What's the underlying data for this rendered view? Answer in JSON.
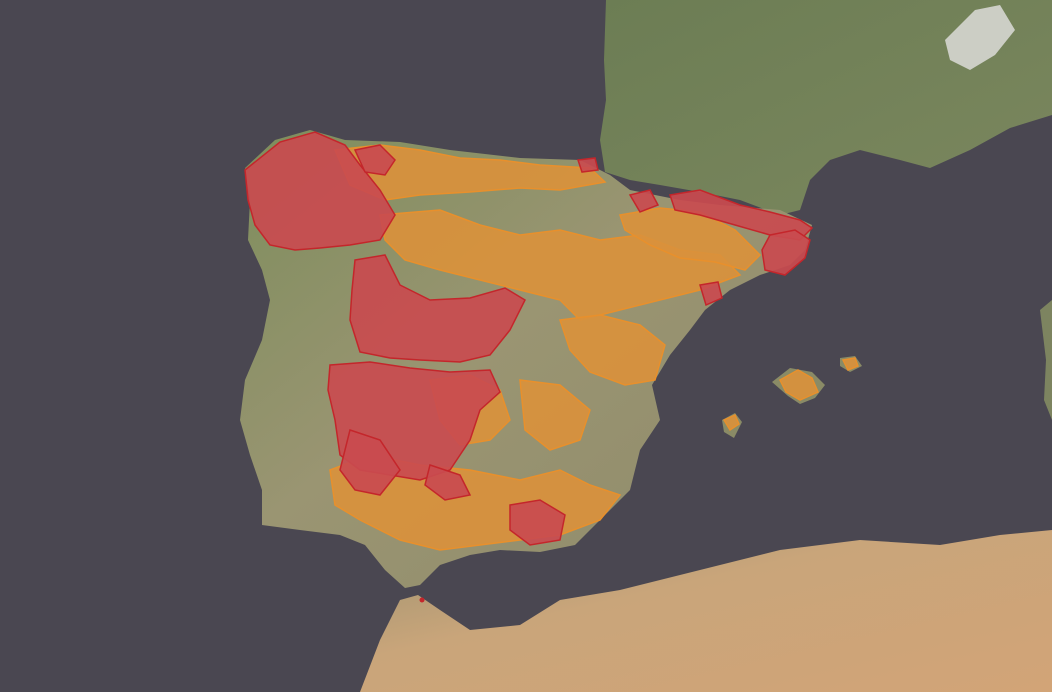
{
  "map": {
    "colors": {
      "sea": "#4a4751",
      "land_green": "#6f7f58",
      "land_dry": "#a59a7a",
      "desert": "#c9a57a",
      "snow": "#e8e8e8",
      "high_category": "#c4262b",
      "high_category_fill": "#c94b4f",
      "medium_category": "#e8902c",
      "medium_category_fill": "#d9913c"
    },
    "regions": [
      {
        "name": "iberian-peninsula",
        "fill": "#8a8b66"
      },
      {
        "name": "france",
        "fill": "#6f7f58"
      },
      {
        "name": "north-africa",
        "fill": "#c9a57a"
      },
      {
        "name": "mallorca",
        "fill": "#8a8b66"
      },
      {
        "name": "menorca",
        "fill": "#8a8b66"
      },
      {
        "name": "ibiza",
        "fill": "#8a8b66"
      },
      {
        "name": "sardinia-edge",
        "fill": "#7d8460"
      }
    ]
  }
}
